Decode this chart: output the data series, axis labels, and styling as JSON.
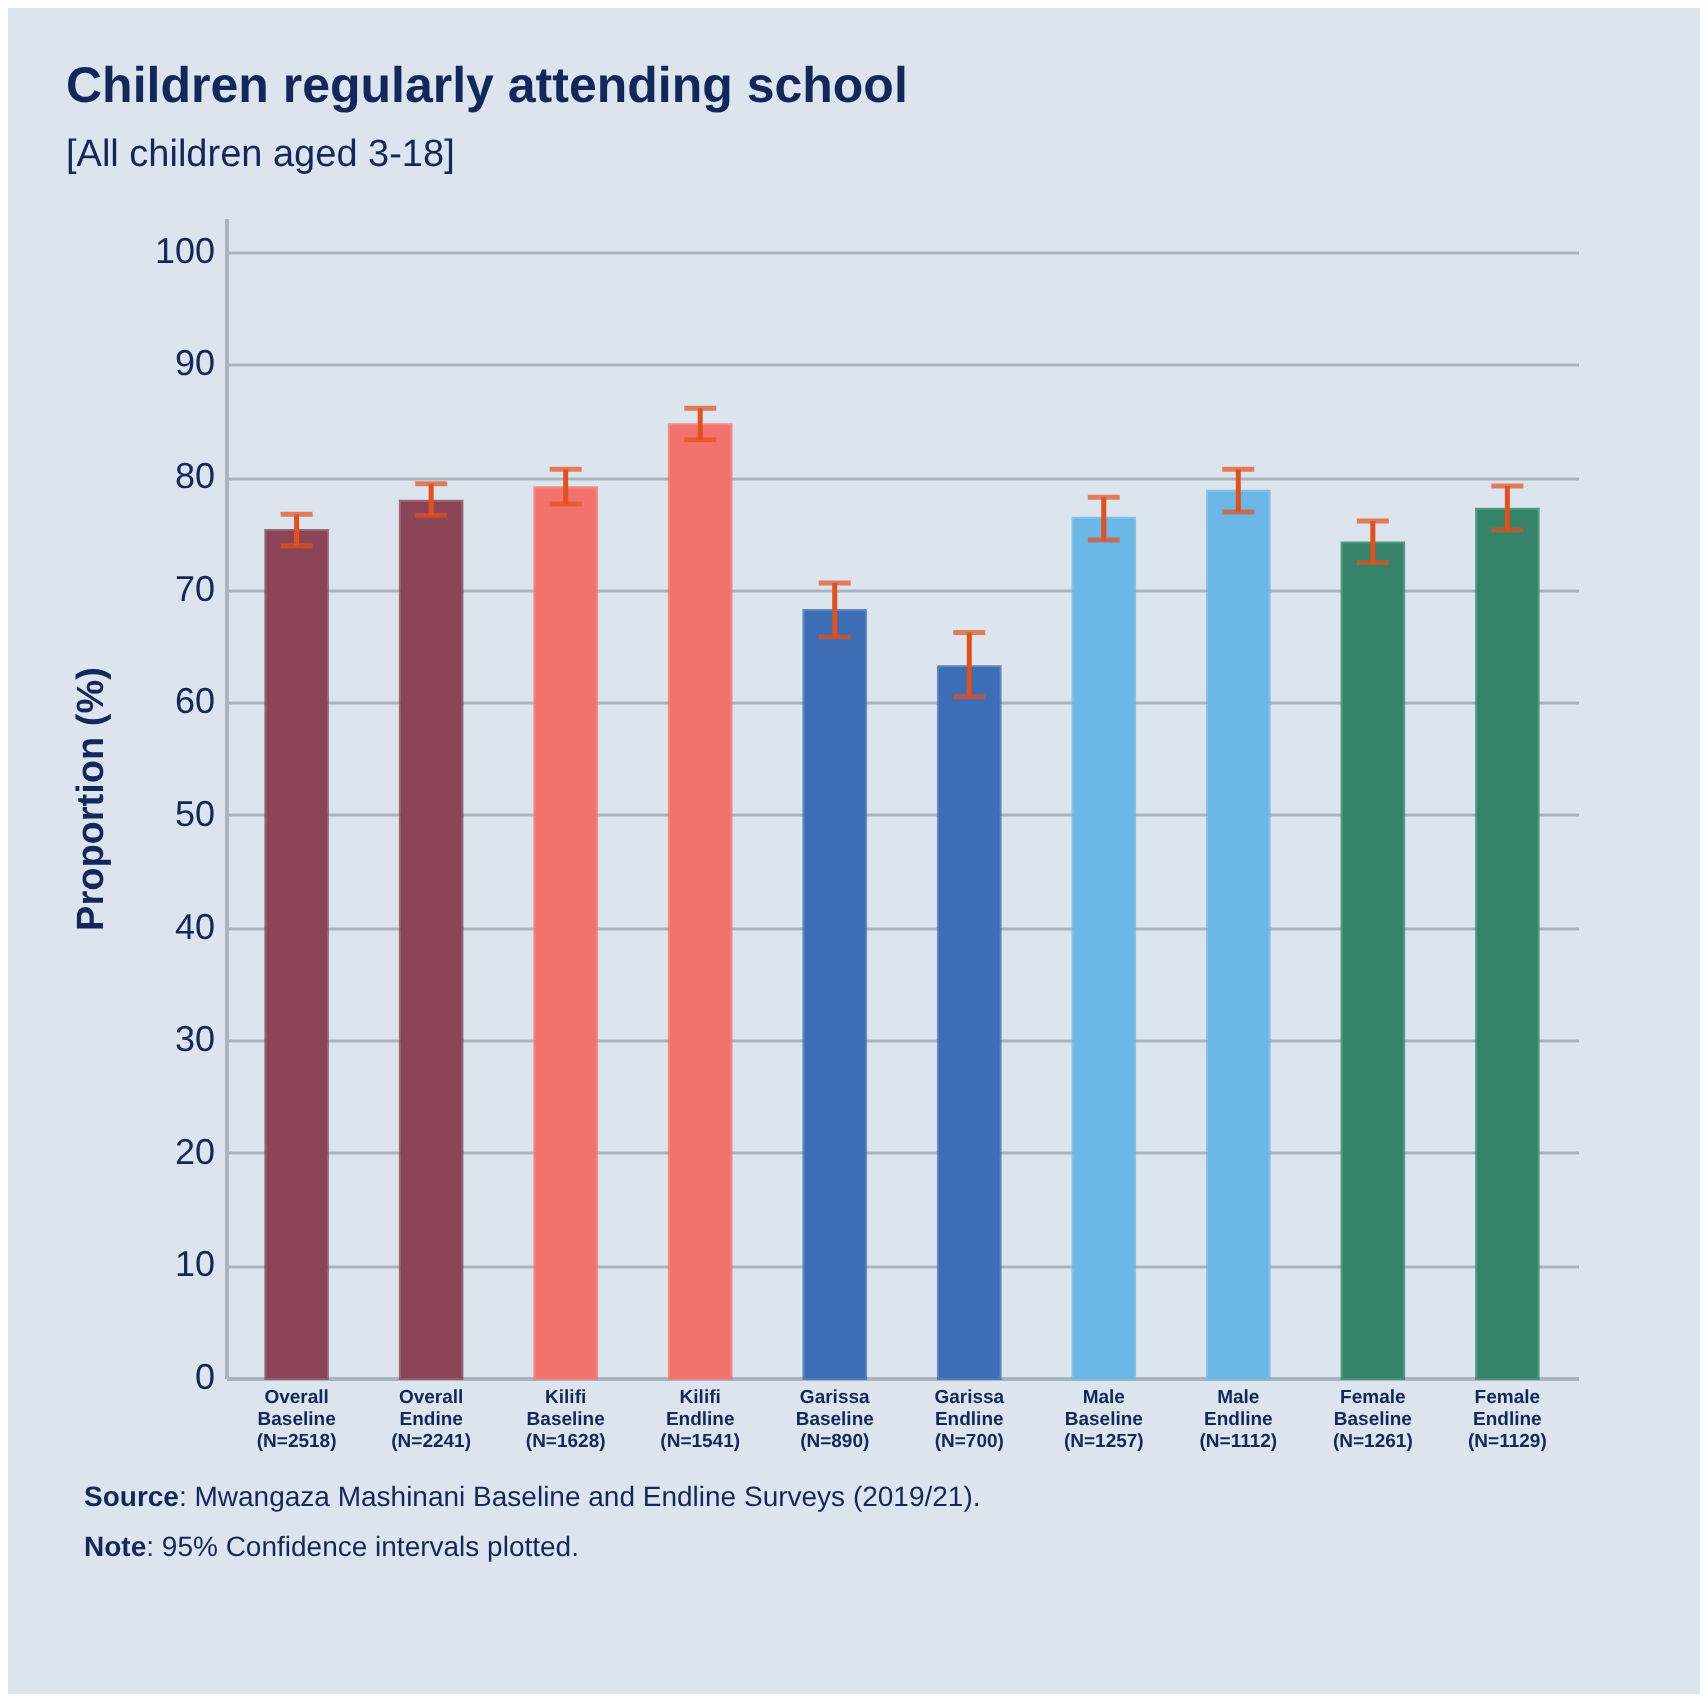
{
  "chart_data": {
    "type": "bar",
    "title": "Children regularly attending school",
    "subtitle": "[All children aged 3-18]",
    "ylabel": "Proportion (%)",
    "categories": [
      "Overall Baseline (N=2518)",
      "Overall Endine (N=2241)",
      "Kilifi Baseline (N=1628)",
      "Kilifi Endline (N=1541)",
      "Garissa Baseline (N=890)",
      "Garissa Endline (N=700)",
      "Male Baseline (N=1257)",
      "Male Endline (N=1112)",
      "Female Baseline (N=1261)",
      "Female Endline (N=1129)"
    ],
    "values": [
      75.2,
      77.8,
      79.0,
      84.6,
      68.1,
      63.1,
      76.3,
      78.7,
      74.1,
      77.1
    ],
    "errors": [
      [
        73.9,
        76.7
      ],
      [
        76.6,
        79.4
      ],
      [
        77.6,
        80.7
      ],
      [
        83.3,
        86.1
      ],
      [
        65.8,
        70.6
      ],
      [
        60.5,
        66.2
      ],
      [
        74.4,
        78.2
      ],
      [
        76.9,
        80.7
      ],
      [
        72.4,
        76.1
      ],
      [
        75.3,
        79.2
      ]
    ],
    "colors": [
      "#8b4557",
      "#8b4557",
      "#f4726d",
      "#f4726d",
      "#3d6db5",
      "#3d6db5",
      "#6bb8e6",
      "#6bb8e6",
      "#358469",
      "#358469"
    ],
    "ylim": [
      0,
      103
    ],
    "yticks": [
      0,
      10,
      20,
      30,
      40,
      50,
      60,
      70,
      80,
      90,
      100
    ],
    "grid": "y",
    "annotations": [
      "Source: Mwangaza Mashinani Baseline and Endline Surveys (2019/21).",
      "Note: 95% Confidence intervals plotted."
    ]
  }
}
